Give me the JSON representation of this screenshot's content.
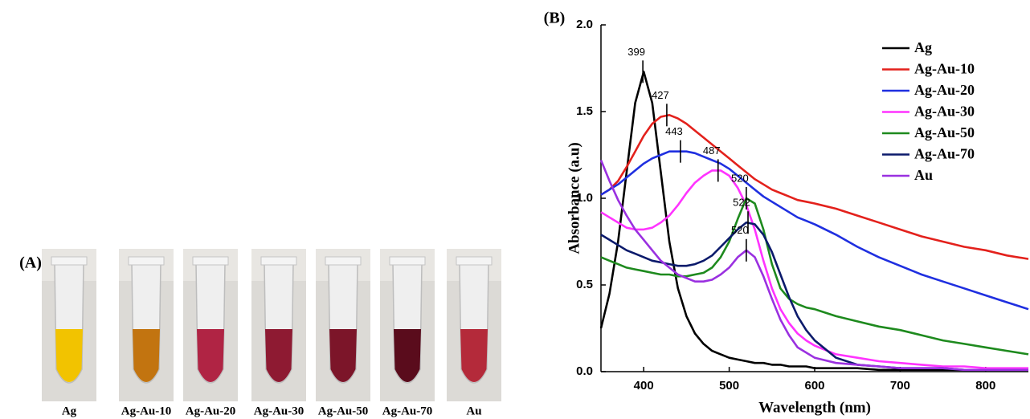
{
  "panel_a": {
    "label": "(A)",
    "samples": [
      {
        "label": "Ag",
        "color": "#f2c300"
      },
      {
        "label": "Ag-Au-10",
        "color": "#c27410"
      },
      {
        "label": "Ag-Au-20",
        "color": "#b02444"
      },
      {
        "label": "Ag-Au-30",
        "color": "#8e1a32"
      },
      {
        "label": "Ag-Au-50",
        "color": "#7c1529"
      },
      {
        "label": "Ag-Au-70",
        "color": "#5a0c1c"
      },
      {
        "label": "Au",
        "color": "#b42a3a"
      }
    ]
  },
  "chart_data": {
    "type": "line",
    "panel_label": "(B)",
    "x_label": "Wavelength (nm)",
    "y_label": "Absorbance (a.u)",
    "xlim": [
      350,
      850
    ],
    "ylim": [
      0,
      2
    ],
    "xticks": [
      400,
      500,
      600,
      700,
      800
    ],
    "yticks": [
      {
        "value": 0,
        "label": "0.0"
      },
      {
        "value": 0.5,
        "label": "0.5"
      },
      {
        "value": 1,
        "label": "1.0"
      },
      {
        "value": 1.5,
        "label": "1.5"
      },
      {
        "value": 2,
        "label": "2.0"
      }
    ],
    "legend": "upper right",
    "x": [
      350,
      360,
      370,
      380,
      390,
      400,
      410,
      420,
      430,
      440,
      450,
      460,
      470,
      480,
      490,
      500,
      510,
      520,
      530,
      540,
      550,
      560,
      570,
      580,
      590,
      600,
      625,
      650,
      675,
      700,
      725,
      750,
      775,
      800,
      825,
      850
    ],
    "series": [
      {
        "name": "Ag",
        "color": "#000000",
        "values": [
          0.25,
          0.45,
          0.75,
          1.15,
          1.55,
          1.73,
          1.55,
          1.15,
          0.75,
          0.48,
          0.32,
          0.22,
          0.16,
          0.12,
          0.1,
          0.08,
          0.07,
          0.06,
          0.05,
          0.05,
          0.04,
          0.04,
          0.03,
          0.03,
          0.03,
          0.02,
          0.02,
          0.02,
          0.01,
          0.01,
          0.01,
          0.01,
          0.01,
          0.01,
          0.01,
          0.01
        ]
      },
      {
        "name": "Ag-Au-10",
        "color": "#e3211c",
        "values": [
          1.02,
          1.05,
          1.1,
          1.18,
          1.27,
          1.36,
          1.43,
          1.47,
          1.48,
          1.46,
          1.43,
          1.39,
          1.35,
          1.31,
          1.27,
          1.23,
          1.19,
          1.15,
          1.11,
          1.08,
          1.05,
          1.03,
          1.01,
          0.99,
          0.98,
          0.97,
          0.94,
          0.9,
          0.86,
          0.82,
          0.78,
          0.75,
          0.72,
          0.7,
          0.67,
          0.65
        ]
      },
      {
        "name": "Ag-Au-20",
        "color": "#1f2fe0",
        "values": [
          1.02,
          1.05,
          1.08,
          1.12,
          1.16,
          1.2,
          1.23,
          1.25,
          1.27,
          1.27,
          1.27,
          1.26,
          1.24,
          1.22,
          1.2,
          1.17,
          1.13,
          1.09,
          1.05,
          1.01,
          0.98,
          0.95,
          0.92,
          0.89,
          0.87,
          0.85,
          0.79,
          0.72,
          0.66,
          0.61,
          0.56,
          0.52,
          0.48,
          0.44,
          0.4,
          0.36
        ]
      },
      {
        "name": "Ag-Au-30",
        "color": "#ff33ff",
        "values": [
          0.92,
          0.89,
          0.86,
          0.83,
          0.82,
          0.82,
          0.83,
          0.86,
          0.9,
          0.96,
          1.03,
          1.09,
          1.13,
          1.16,
          1.16,
          1.13,
          1.06,
          0.96,
          0.82,
          0.64,
          0.48,
          0.36,
          0.28,
          0.22,
          0.18,
          0.15,
          0.1,
          0.08,
          0.06,
          0.05,
          0.04,
          0.03,
          0.03,
          0.02,
          0.02,
          0.02
        ]
      },
      {
        "name": "Ag-Au-50",
        "color": "#1e8a1e",
        "values": [
          0.66,
          0.64,
          0.62,
          0.6,
          0.59,
          0.58,
          0.57,
          0.56,
          0.56,
          0.55,
          0.55,
          0.56,
          0.57,
          0.6,
          0.66,
          0.75,
          0.88,
          1.0,
          0.97,
          0.82,
          0.62,
          0.48,
          0.42,
          0.39,
          0.37,
          0.36,
          0.32,
          0.29,
          0.26,
          0.24,
          0.21,
          0.18,
          0.16,
          0.14,
          0.12,
          0.1
        ]
      },
      {
        "name": "Ag-Au-70",
        "color": "#0b1a6b",
        "values": [
          0.79,
          0.76,
          0.73,
          0.7,
          0.68,
          0.66,
          0.64,
          0.63,
          0.62,
          0.61,
          0.61,
          0.62,
          0.64,
          0.67,
          0.72,
          0.77,
          0.82,
          0.86,
          0.85,
          0.79,
          0.69,
          0.56,
          0.43,
          0.32,
          0.24,
          0.18,
          0.08,
          0.04,
          0.03,
          0.02,
          0.02,
          0.02,
          0.01,
          0.01,
          0.01,
          0.01
        ]
      },
      {
        "name": "Au",
        "color": "#9a30e0",
        "values": [
          1.22,
          1.1,
          0.99,
          0.9,
          0.82,
          0.76,
          0.7,
          0.64,
          0.6,
          0.56,
          0.54,
          0.52,
          0.52,
          0.53,
          0.56,
          0.6,
          0.66,
          0.7,
          0.66,
          0.55,
          0.42,
          0.3,
          0.21,
          0.14,
          0.11,
          0.08,
          0.05,
          0.04,
          0.03,
          0.02,
          0.02,
          0.02,
          0.01,
          0.01,
          0.01,
          0.01
        ]
      }
    ],
    "peaks": [
      {
        "label": "399",
        "x": 399,
        "y": 1.73
      },
      {
        "label": "427",
        "x": 427,
        "y": 1.48
      },
      {
        "label": "443",
        "x": 443,
        "y": 1.27
      },
      {
        "label": "487",
        "x": 487,
        "y": 1.16
      },
      {
        "label": "520",
        "x": 520,
        "y": 1.0
      },
      {
        "label": "522",
        "x": 522,
        "y": 0.86
      },
      {
        "label": "520",
        "x": 520,
        "y": 0.7
      }
    ]
  }
}
